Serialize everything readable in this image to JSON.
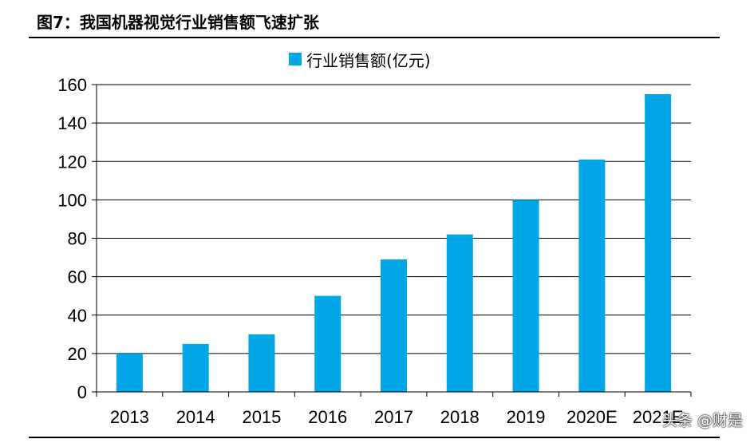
{
  "figure_title": "图7：我国机器视觉行业销售额飞速扩张",
  "watermark": "头条 @财是",
  "chart_data": {
    "type": "bar",
    "title": "",
    "xlabel": "",
    "ylabel": "",
    "categories": [
      "2013",
      "2014",
      "2015",
      "2016",
      "2017",
      "2018",
      "2019",
      "2020E",
      "2021E"
    ],
    "series": [
      {
        "name": "行业销售额(亿元)",
        "values": [
          20,
          25,
          30,
          50,
          69,
          82,
          100,
          121,
          155
        ],
        "color": "#00A6E6"
      }
    ],
    "ylim": [
      0,
      160
    ],
    "yticks": [
      0,
      20,
      40,
      60,
      80,
      100,
      120,
      140,
      160
    ],
    "grid": "y-major",
    "legend_position": "top-center"
  }
}
